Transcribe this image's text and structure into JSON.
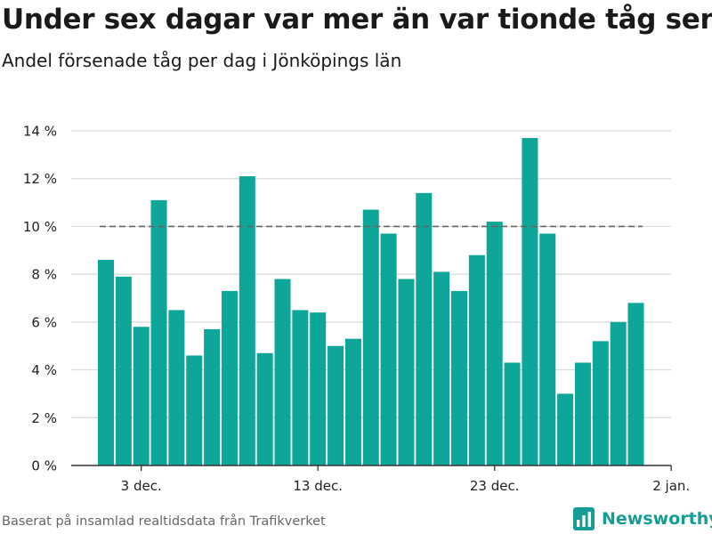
{
  "title": "Under sex dagar var mer än var tionde tåg sent",
  "subtitle": "Andel försenade tåg per dag i Jönköpings län",
  "footer": "Baserat på insamlad realtidsdata från Trafikverket",
  "brand": {
    "name": "Newsworthy",
    "color": "#179c93",
    "icon": "newsworthy-logo-icon"
  },
  "chart_data": {
    "type": "bar",
    "title": "Under sex dagar var mer än var tionde tåg sent",
    "subtitle": "Andel försenade tåg per dag i Jönköpings län",
    "xlabel": "",
    "ylabel": "",
    "bar_color": "#0da699",
    "grid": true,
    "ylim": [
      0,
      14
    ],
    "yticks": [
      0,
      2,
      4,
      6,
      8,
      10,
      12,
      14
    ],
    "y_unit": " %",
    "x_ticks": [
      "3 dec.",
      "13 dec.",
      "23 dec.",
      "2 jan."
    ],
    "reference_line": {
      "value": 10,
      "style": "dashed",
      "color": "#666666"
    },
    "dates": [
      "1 dec.",
      "2 dec.",
      "3 dec.",
      "4 dec.",
      "5 dec.",
      "6 dec.",
      "7 dec.",
      "8 dec.",
      "9 dec.",
      "10 dec.",
      "11 dec.",
      "12 dec.",
      "13 dec.",
      "14 dec.",
      "15 dec.",
      "16 dec.",
      "17 dec.",
      "18 dec.",
      "19 dec.",
      "20 dec.",
      "21 dec.",
      "22 dec.",
      "23 dec.",
      "24 dec.",
      "25 dec.",
      "26 dec.",
      "27 dec.",
      "28 dec.",
      "29 dec.",
      "30 dec.",
      "31 dec."
    ],
    "values": [
      8.6,
      7.9,
      5.8,
      11.1,
      6.5,
      4.6,
      5.7,
      7.3,
      12.1,
      4.7,
      7.8,
      6.5,
      6.4,
      5.0,
      5.3,
      10.7,
      9.7,
      7.8,
      11.4,
      8.1,
      7.3,
      8.8,
      10.2,
      4.3,
      13.7,
      9.7,
      3.0,
      4.3,
      5.2,
      6.0,
      6.8
    ]
  }
}
